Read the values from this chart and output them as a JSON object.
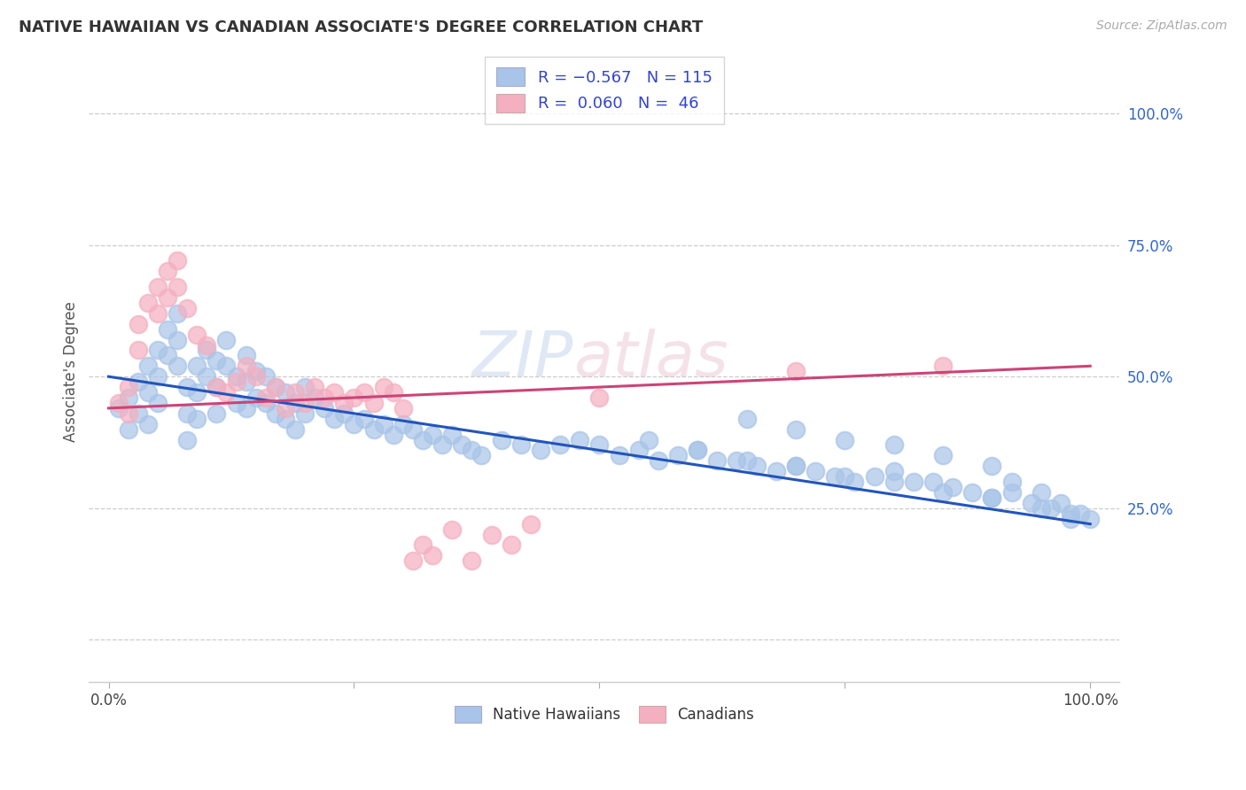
{
  "title": "NATIVE HAWAIIAN VS CANADIAN ASSOCIATE'S DEGREE CORRELATION CHART",
  "source": "Source: ZipAtlas.com",
  "ylabel": "Associate's Degree",
  "blue_color": "#a8c4e8",
  "pink_color": "#f4afc0",
  "blue_line_color": "#2255bb",
  "pink_line_color": "#cc4477",
  "watermark": "ZIPatlas",
  "blue_trend_x0": 0,
  "blue_trend_x1": 100,
  "blue_trend_y0": 50,
  "blue_trend_y1": 22,
  "pink_trend_x0": 0,
  "pink_trend_x1": 100,
  "pink_trend_y0": 44,
  "pink_trend_y1": 52,
  "blue_scatter_x": [
    1,
    2,
    2,
    3,
    3,
    4,
    4,
    4,
    5,
    5,
    5,
    6,
    6,
    7,
    7,
    7,
    8,
    8,
    8,
    9,
    9,
    9,
    10,
    10,
    11,
    11,
    11,
    12,
    12,
    13,
    13,
    14,
    14,
    14,
    15,
    15,
    16,
    16,
    17,
    17,
    18,
    18,
    19,
    19,
    20,
    20,
    21,
    22,
    23,
    24,
    25,
    26,
    27,
    28,
    29,
    30,
    31,
    32,
    33,
    34,
    35,
    36,
    37,
    38,
    40,
    42,
    44,
    46,
    48,
    50,
    52,
    54,
    56,
    58,
    60,
    62,
    64,
    66,
    68,
    70,
    72,
    74,
    76,
    78,
    80,
    82,
    84,
    86,
    88,
    90,
    92,
    94,
    96,
    98,
    100,
    65,
    70,
    75,
    80,
    85,
    90,
    92,
    95,
    97,
    99,
    55,
    60,
    65,
    70,
    75,
    80,
    85,
    90,
    95,
    98
  ],
  "blue_scatter_y": [
    44,
    46,
    40,
    49,
    43,
    52,
    47,
    41,
    55,
    50,
    45,
    59,
    54,
    62,
    57,
    52,
    48,
    43,
    38,
    52,
    47,
    42,
    55,
    50,
    53,
    48,
    43,
    57,
    52,
    50,
    45,
    54,
    49,
    44,
    51,
    46,
    50,
    45,
    48,
    43,
    47,
    42,
    45,
    40,
    48,
    43,
    46,
    44,
    42,
    43,
    41,
    42,
    40,
    41,
    39,
    41,
    40,
    38,
    39,
    37,
    39,
    37,
    36,
    35,
    38,
    37,
    36,
    37,
    38,
    37,
    35,
    36,
    34,
    35,
    36,
    34,
    34,
    33,
    32,
    33,
    32,
    31,
    30,
    31,
    32,
    30,
    30,
    29,
    28,
    27,
    28,
    26,
    25,
    24,
    23,
    42,
    40,
    38,
    37,
    35,
    33,
    30,
    28,
    26,
    24,
    38,
    36,
    34,
    33,
    31,
    30,
    28,
    27,
    25,
    23
  ],
  "pink_scatter_x": [
    1,
    2,
    2,
    3,
    3,
    4,
    5,
    5,
    6,
    6,
    7,
    7,
    8,
    9,
    10,
    11,
    12,
    13,
    14,
    15,
    16,
    17,
    18,
    19,
    20,
    21,
    22,
    23,
    24,
    25,
    26,
    27,
    28,
    29,
    30,
    31,
    32,
    33,
    35,
    37,
    39,
    41,
    43,
    70,
    85,
    50
  ],
  "pink_scatter_y": [
    45,
    48,
    43,
    60,
    55,
    64,
    67,
    62,
    70,
    65,
    72,
    67,
    63,
    58,
    56,
    48,
    47,
    49,
    52,
    50,
    46,
    48,
    44,
    47,
    45,
    48,
    46,
    47,
    45,
    46,
    47,
    45,
    48,
    47,
    44,
    15,
    18,
    16,
    21,
    15,
    20,
    18,
    22,
    51,
    52,
    46
  ],
  "xlim_min": -2,
  "xlim_max": 103,
  "ylim_min": -8,
  "ylim_max": 110,
  "yticks": [
    0,
    25,
    50,
    75,
    100
  ],
  "ytick_labels": [
    "",
    "25.0%",
    "50.0%",
    "75.0%",
    "100.0%"
  ],
  "xticks": [
    0,
    25,
    50,
    75,
    100
  ],
  "xtick_labels": [
    "0.0%",
    "",
    "",
    "",
    "100.0%"
  ]
}
